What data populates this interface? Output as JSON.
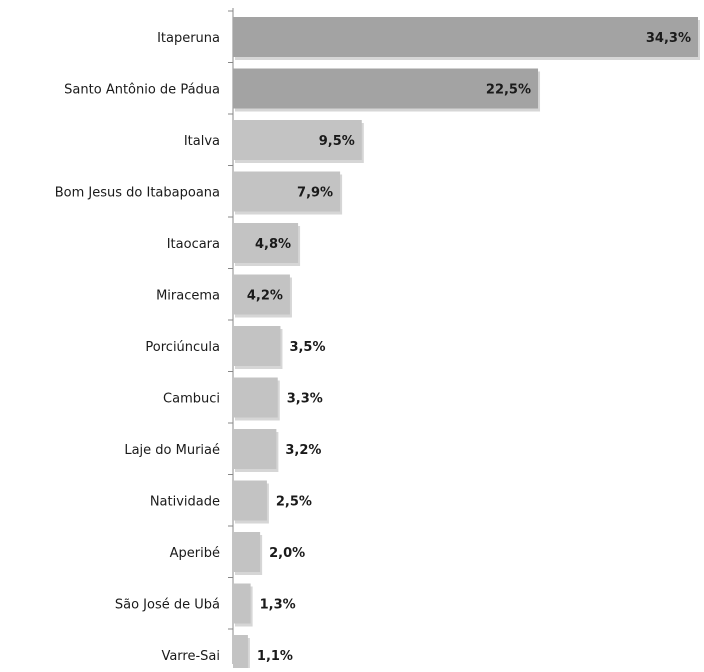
{
  "chart_data": {
    "type": "bar",
    "orientation": "horizontal",
    "title": "",
    "xlabel": "",
    "ylabel": "",
    "xlim": [
      0,
      34.3
    ],
    "grid": false,
    "legend": "none",
    "categories": [
      "Itaperuna",
      "Santo Antônio de Pádua",
      "Italva",
      "Bom Jesus do Itabapoana",
      "Itaocara",
      "Miracema",
      "Porciúncula",
      "Cambuci",
      "Laje do Muriaé",
      "Natividade",
      "Aperibé",
      "São José de Ubá",
      "Varre-Sai"
    ],
    "values": [
      34.3,
      22.5,
      9.5,
      7.9,
      4.8,
      4.2,
      3.5,
      3.3,
      3.2,
      2.5,
      2.0,
      1.3,
      1.1
    ],
    "value_labels": [
      "34,3%",
      "22,5%",
      "9,5%",
      "7,9%",
      "4,8%",
      "4,2%",
      "3,5%",
      "3,3%",
      "3,2%",
      "2,5%",
      "2,0%",
      "1,3%",
      "1,1%"
    ],
    "colors": {
      "bar_dark": "#a3a3a3",
      "bar_light": "#c3c3c3",
      "shadow": "#d6d6d6",
      "axis": "#888888",
      "text": "#1a1a1a"
    }
  }
}
